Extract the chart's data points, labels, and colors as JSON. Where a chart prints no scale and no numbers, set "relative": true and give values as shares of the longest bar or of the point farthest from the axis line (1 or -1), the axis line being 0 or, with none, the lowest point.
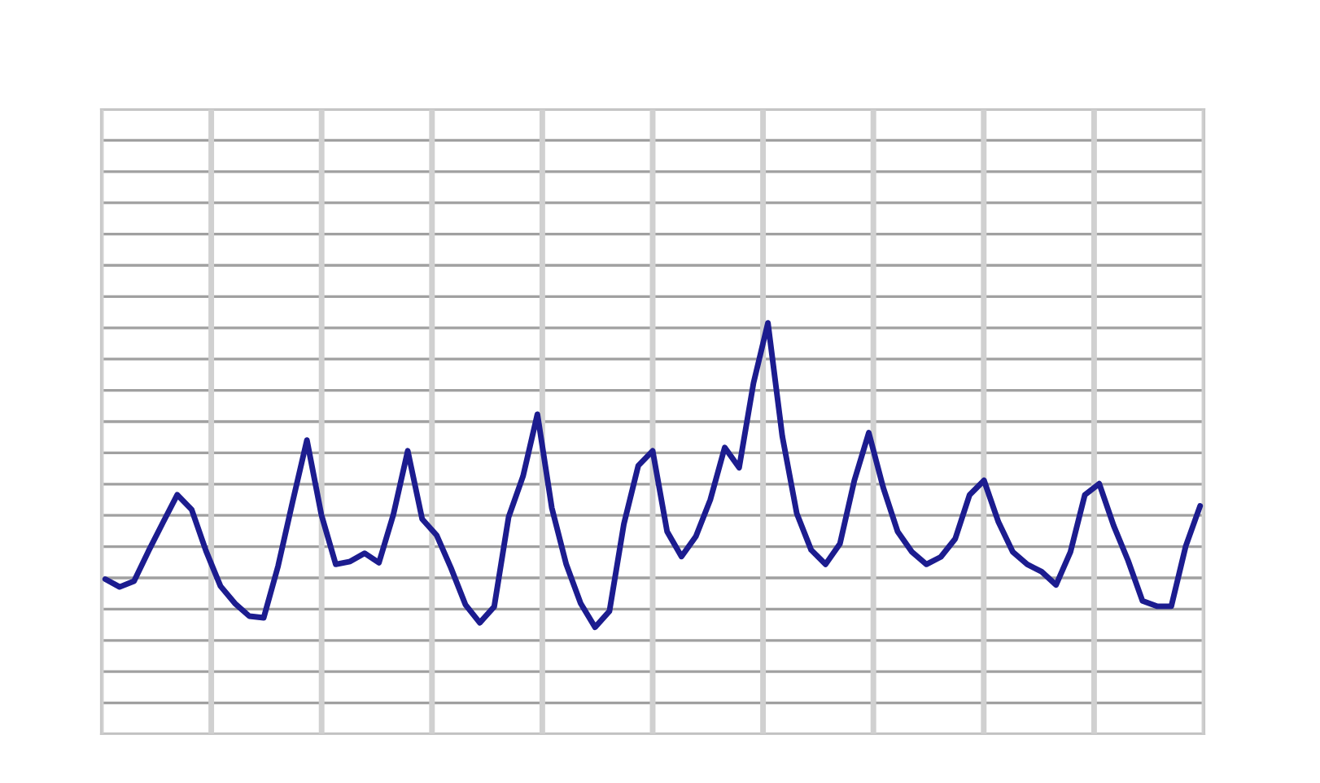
{
  "chart_data": {
    "type": "line",
    "relative": true,
    "grid": true,
    "categories": [
      null,
      null,
      null,
      null,
      null,
      null,
      null,
      null,
      null,
      null,
      null,
      null,
      null,
      null,
      null,
      null,
      null,
      null,
      null,
      null,
      null,
      null,
      null,
      null,
      null,
      null,
      null,
      null,
      null,
      null,
      null,
      null,
      null,
      null,
      null,
      null,
      null,
      null,
      null,
      null,
      null,
      null,
      null,
      null,
      null,
      null,
      null,
      null,
      null,
      null,
      null,
      null,
      null,
      null,
      null,
      null,
      null,
      null,
      null,
      null,
      null,
      null,
      null,
      null,
      null,
      null,
      null,
      null,
      null,
      null,
      null,
      null,
      null,
      null,
      null,
      null,
      null
    ],
    "series": [
      {
        "color": "#1c1c8f",
        "values": [
          0.377,
          0.358,
          0.372,
          0.445,
          0.514,
          0.582,
          0.546,
          0.445,
          0.36,
          0.318,
          0.287,
          0.283,
          0.409,
          0.564,
          0.715,
          0.534,
          0.413,
          0.42,
          0.44,
          0.417,
          0.534,
          0.689,
          0.523,
          0.484,
          0.404,
          0.315,
          0.271,
          0.31,
          0.528,
          0.627,
          0.778,
          0.55,
          0.413,
          0.318,
          0.26,
          0.299,
          0.511,
          0.653,
          0.689,
          0.493,
          0.432,
          0.481,
          0.57,
          0.697,
          0.648,
          0.854,
          1.0,
          0.724,
          0.537,
          0.448,
          0.413,
          0.463,
          0.617,
          0.733,
          0.6,
          0.493,
          0.443,
          0.413,
          0.431,
          0.475,
          0.582,
          0.617,
          0.516,
          0.443,
          0.413,
          0.395,
          0.363,
          0.443,
          0.582,
          0.609,
          0.507,
          0.422,
          0.324,
          0.311,
          0.311,
          0.457,
          0.555
        ]
      }
    ]
  }
}
